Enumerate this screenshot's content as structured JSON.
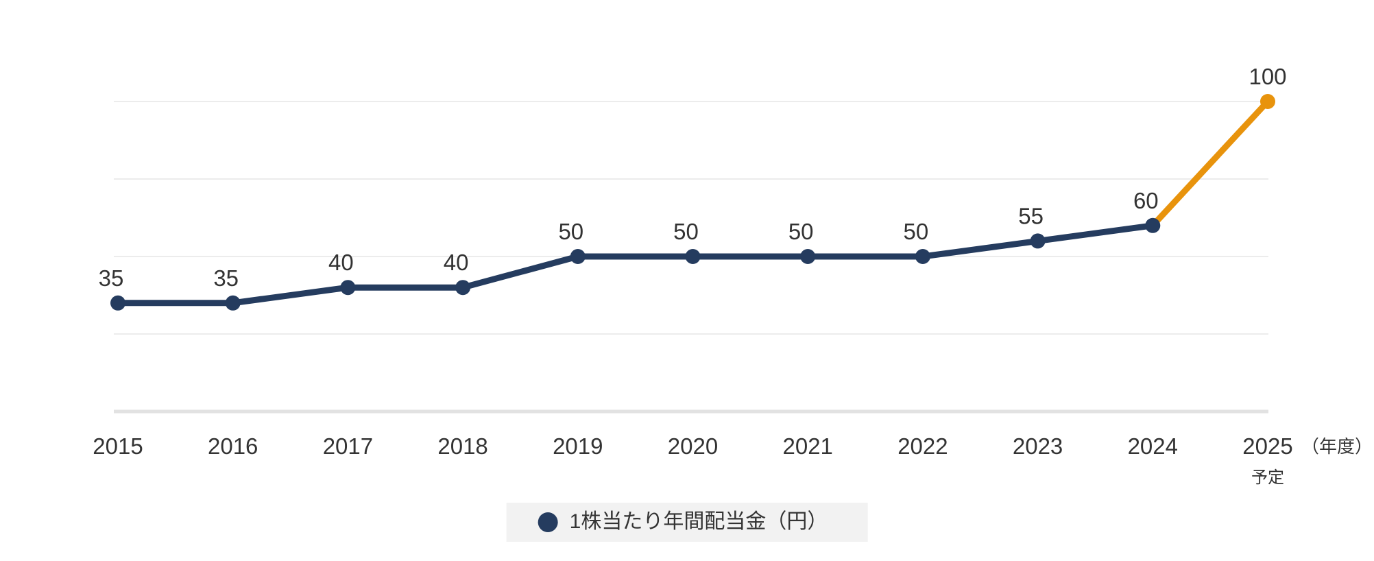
{
  "chart_data": {
    "type": "line",
    "categories": [
      "2015",
      "2016",
      "2017",
      "2018",
      "2019",
      "2020",
      "2021",
      "2022",
      "2023",
      "2024",
      "2025"
    ],
    "category_note": {
      "index": 10,
      "label": "予定"
    },
    "axis_unit_label": "（年度）",
    "series": [
      {
        "name": "1株当たり年間配当金（円）",
        "values": [
          35,
          35,
          40,
          40,
          50,
          50,
          50,
          50,
          55,
          60,
          100
        ],
        "forecast_last_point": true
      }
    ],
    "ylim": [
      0,
      110
    ],
    "gridline_values": [
      25,
      50,
      75,
      100
    ],
    "grid": true,
    "legend": {
      "position": "bottom"
    },
    "colors": {
      "line": "#253c5f",
      "forecast": "#e8930c",
      "grid": "#ececec",
      "axis_line": "#e2e2e2",
      "text": "#333333",
      "legend_bg": "#f2f2f2"
    }
  }
}
